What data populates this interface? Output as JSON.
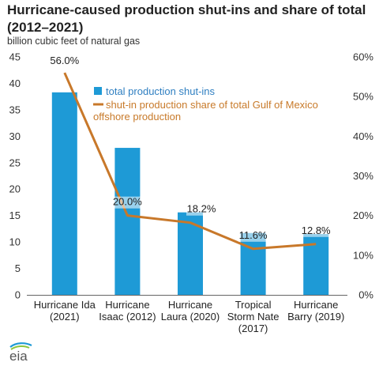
{
  "chart_data": {
    "type": "bar+line",
    "title": "Hurricane-caused production shut-ins and share of total (2012–2021)",
    "subtitle": "billion cubic feet of natural gas",
    "categories": [
      [
        "Hurricane Ida",
        "(2021)"
      ],
      [
        "Hurricane",
        "Isaac (2012)"
      ],
      [
        "Hurricane",
        "Laura (2020)"
      ],
      [
        "Tropical",
        "Storm Nate",
        "(2017)"
      ],
      [
        "Hurricane",
        "Barry (2019)"
      ]
    ],
    "series": [
      {
        "name": "total production shut-ins",
        "type": "bar",
        "axis": "left",
        "color": "#1e9ad6",
        "values": [
          38.3,
          27.8,
          15.6,
          11.7,
          11.5
        ]
      },
      {
        "name": "shut-in production share of total Gulf of Mexico offshore production",
        "type": "line",
        "axis": "right",
        "color": "#c8782a",
        "values": [
          56.0,
          20.0,
          18.2,
          11.6,
          12.8
        ],
        "labels": [
          "56.0%",
          "20.0%",
          "18.2%",
          "11.6%",
          "12.8%"
        ]
      }
    ],
    "yleft": {
      "min": 0,
      "max": 45,
      "step": 5,
      "ticks": [
        "0",
        "5",
        "10",
        "15",
        "20",
        "25",
        "30",
        "35",
        "40",
        "45"
      ]
    },
    "yright": {
      "min": 0,
      "max": 60,
      "step": 10,
      "ticks": [
        "0%",
        "10%",
        "20%",
        "30%",
        "40%",
        "50%",
        "60%"
      ]
    },
    "grid": false,
    "legend_position": "top-center",
    "legend": {
      "bar_label": "total production shut-ins",
      "line_label_1": "shut-in production share of total Gulf of Mexico",
      "line_label_2": "offshore production"
    }
  },
  "logo": {
    "text": "eia",
    "icon": "eia-logo-icon"
  }
}
